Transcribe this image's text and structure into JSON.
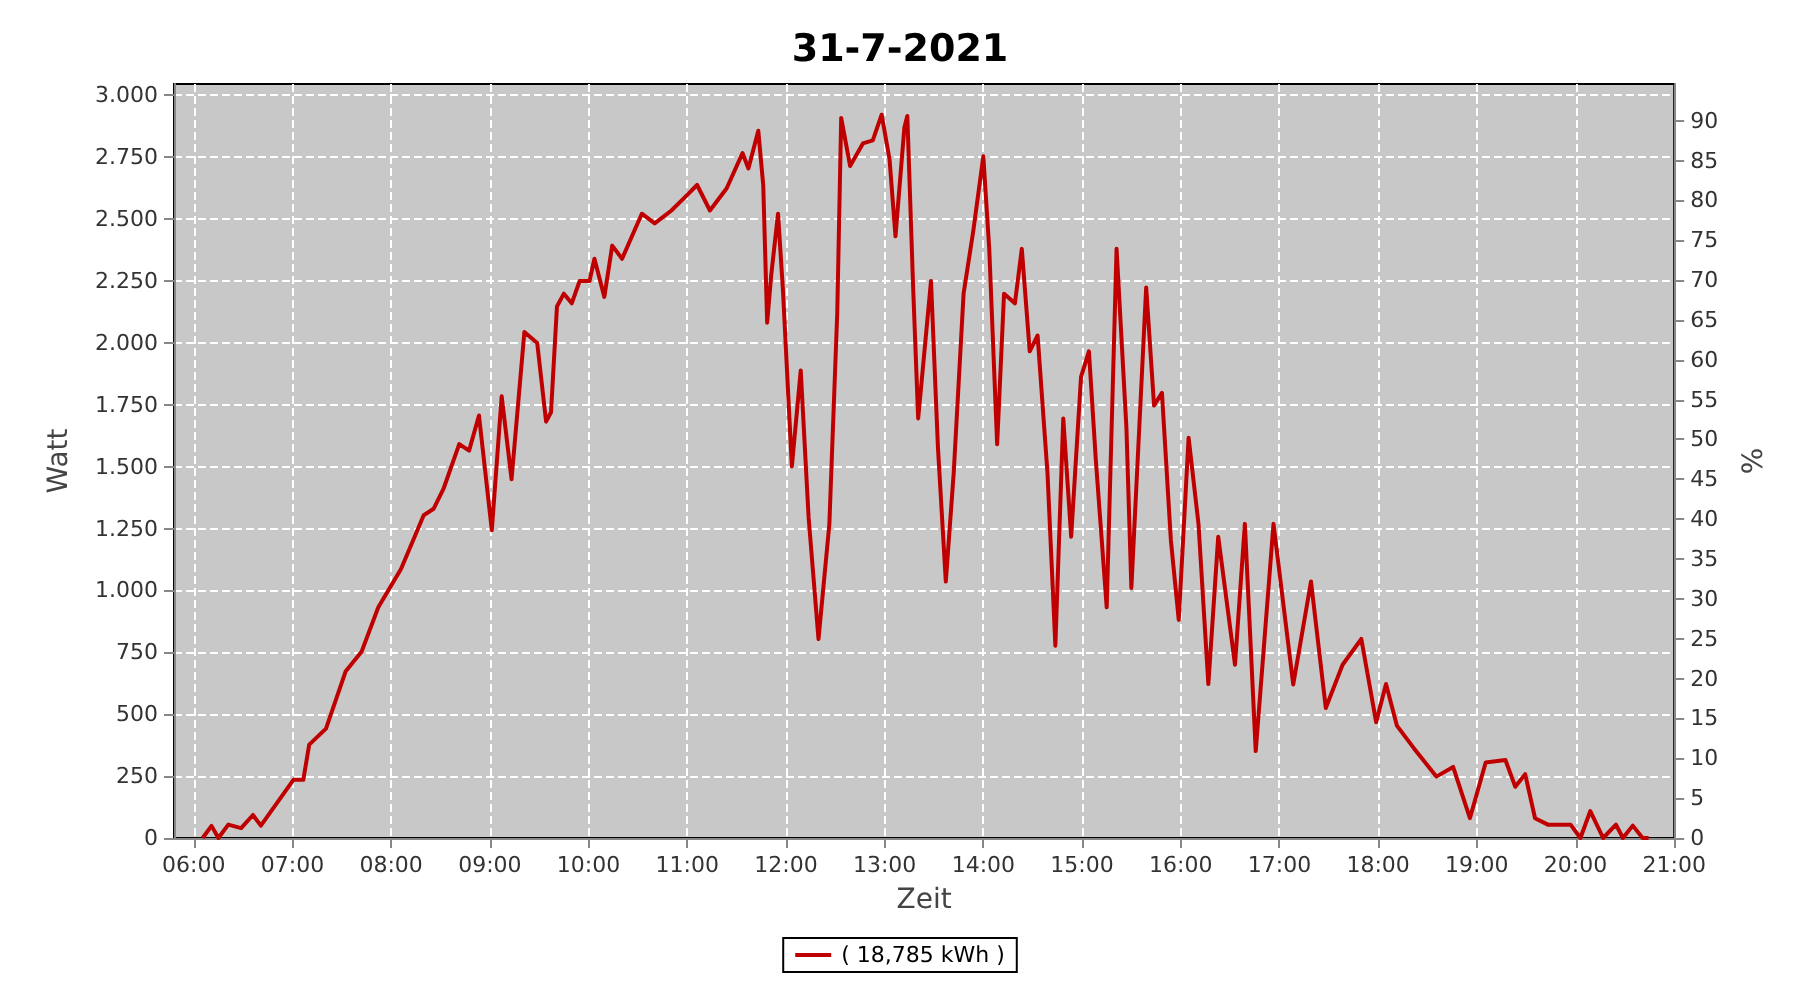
{
  "chart_data": {
    "type": "line",
    "title": "31-7-2021",
    "xlabel": "Zeit",
    "ylabel": "Watt",
    "y2label": "%",
    "x": [
      6.09,
      6.18,
      6.25,
      6.35,
      6.48,
      6.6,
      6.68,
      7.01,
      7.11,
      7.17,
      7.34,
      7.54,
      7.7,
      7.87,
      8.1,
      8.33,
      8.43,
      8.53,
      8.69,
      8.79,
      8.89,
      9.02,
      9.12,
      9.22,
      9.35,
      9.48,
      9.57,
      9.62,
      9.68,
      9.75,
      9.83,
      9.91,
      10.01,
      10.06,
      10.16,
      10.24,
      10.34,
      10.54,
      10.67,
      10.84,
      10.97,
      11.1,
      11.23,
      11.4,
      11.56,
      11.62,
      11.72,
      11.77,
      11.81,
      11.85,
      11.92,
      11.97,
      12.06,
      12.15,
      12.23,
      12.33,
      12.44,
      12.52,
      12.56,
      12.65,
      12.78,
      12.88,
      12.97,
      13.05,
      13.11,
      13.2,
      13.23,
      13.29,
      13.34,
      13.47,
      13.54,
      13.62,
      13.7,
      13.8,
      13.9,
      14,
      14.06,
      14.14,
      14.21,
      14.32,
      14.39,
      14.47,
      14.55,
      14.65,
      14.73,
      14.81,
      14.89,
      14.99,
      15.07,
      15.14,
      15.25,
      15.35,
      15.45,
      15.5,
      15.65,
      15.73,
      15.81,
      15.9,
      15.98,
      16.08,
      16.18,
      16.28,
      16.38,
      16.55,
      16.65,
      16.76,
      16.94,
      17.14,
      17.32,
      17.47,
      17.64,
      17.83,
      17.98,
      18.08,
      18.19,
      18.36,
      18.59,
      18.76,
      18.93,
      19.09,
      19.29,
      19.39,
      19.49,
      19.59,
      19.72,
      19.95,
      20.05,
      20.15,
      20.28,
      20.41,
      20.48,
      20.58,
      20.68,
      20.74
    ],
    "series": [
      {
        "name": "( 18,785 kWh )",
        "color": "#c00000",
        "values": [
          0,
          49,
          0,
          54,
          40,
          93,
          50,
          235,
          235,
          377,
          442,
          674,
          752,
          932,
          1087,
          1304,
          1330,
          1410,
          1591,
          1565,
          1707,
          1243,
          1785,
          1449,
          2044,
          2000,
          1682,
          1720,
          2147,
          2199,
          2160,
          2250,
          2250,
          2340,
          2186,
          2393,
          2340,
          2522,
          2483,
          2535,
          2586,
          2638,
          2535,
          2625,
          2767,
          2705,
          2857,
          2638,
          2082,
          2270,
          2522,
          2212,
          1501,
          1889,
          1294,
          804,
          1268,
          2121,
          2909,
          2715,
          2806,
          2818,
          2922,
          2741,
          2431,
          2870,
          2917,
          2212,
          1695,
          2250,
          1579,
          1036,
          1475,
          2199,
          2457,
          2754,
          2380,
          1591,
          2199,
          2160,
          2380,
          1966,
          2030,
          1475,
          777,
          1695,
          1217,
          1863,
          1966,
          1527,
          932,
          2380,
          1656,
          1010,
          2224,
          1747,
          1798,
          1204,
          881,
          1617,
          1269,
          622,
          1217,
          700,
          1269,
          351,
          1269,
          620,
          1036,
          525,
          700,
          804,
          468,
          622,
          454,
          364,
          248,
          287,
          80,
          305,
          315,
          207,
          258,
          80,
          54,
          54,
          0,
          109,
          0,
          54,
          0,
          50,
          0,
          0
        ]
      }
    ],
    "xlim": [
      5.8,
      21.0
    ],
    "xticks": [
      {
        "value": 6,
        "label": "06:00"
      },
      {
        "value": 7,
        "label": "07:00"
      },
      {
        "value": 8,
        "label": "08:00"
      },
      {
        "value": 9,
        "label": "09:00"
      },
      {
        "value": 10,
        "label": "10:00"
      },
      {
        "value": 11,
        "label": "11:00"
      },
      {
        "value": 12,
        "label": "12:00"
      },
      {
        "value": 13,
        "label": "13:00"
      },
      {
        "value": 14,
        "label": "14:00"
      },
      {
        "value": 15,
        "label": "15:00"
      },
      {
        "value": 16,
        "label": "16:00"
      },
      {
        "value": 17,
        "label": "17:00"
      },
      {
        "value": 18,
        "label": "18:00"
      },
      {
        "value": 19,
        "label": "19:00"
      },
      {
        "value": 20,
        "label": "20:00"
      },
      {
        "value": 21,
        "label": "21:00"
      }
    ],
    "ylim": [
      0,
      3046
    ],
    "yticks": [
      0,
      250,
      500,
      750,
      {
        "value": 1000,
        "label": "1.000"
      },
      {
        "value": 1250,
        "label": "1.250"
      },
      {
        "value": 1500,
        "label": "1.500"
      },
      {
        "value": 1750,
        "label": "1.750"
      },
      {
        "value": 2000,
        "label": "2.000"
      },
      {
        "value": 2250,
        "label": "2.250"
      },
      {
        "value": 2500,
        "label": "2.500"
      },
      {
        "value": 2750,
        "label": "2.750"
      },
      {
        "value": 3000,
        "label": "3.000"
      }
    ],
    "y2lim": [
      0,
      94.6
    ],
    "y2ticks": [
      0,
      5,
      10,
      15,
      20,
      25,
      30,
      35,
      40,
      45,
      50,
      55,
      60,
      65,
      70,
      75,
      80,
      85,
      90
    ],
    "grid": true,
    "legend": "bottom",
    "marker": "none",
    "line_style": "solid"
  }
}
